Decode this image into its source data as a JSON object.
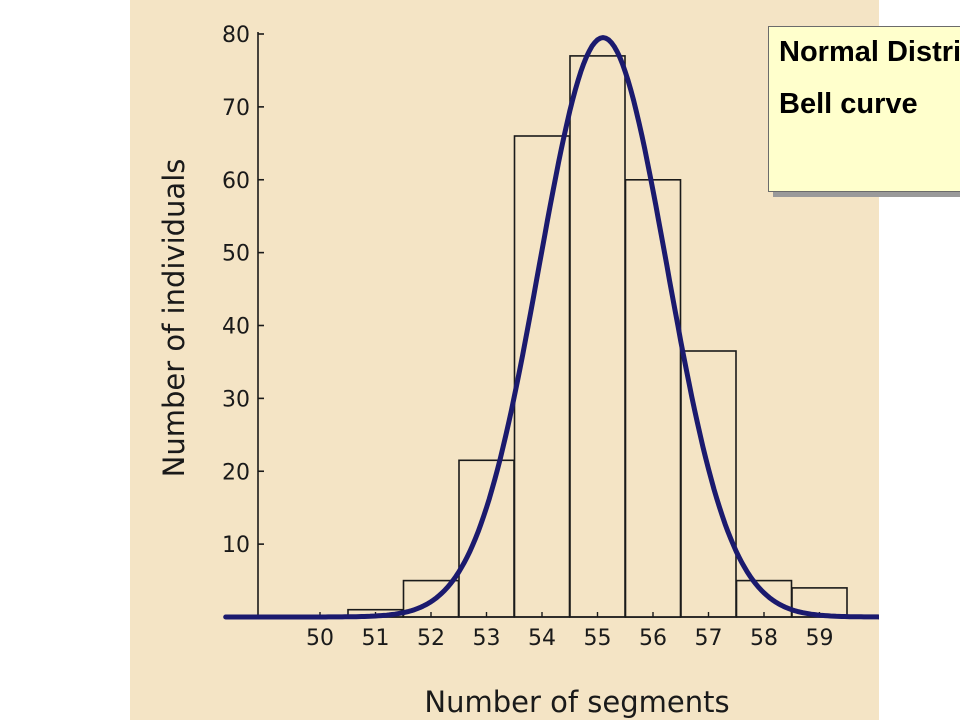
{
  "chart_data": {
    "type": "bar",
    "xlabel": "Number of segments",
    "ylabel": "Number of individuals",
    "categories": [
      "50",
      "51",
      "52",
      "53",
      "54",
      "55",
      "56",
      "57",
      "58",
      "59"
    ],
    "values": [
      0,
      1,
      5,
      21.5,
      66,
      77,
      60,
      36.5,
      5,
      4
    ],
    "yticks": [
      "10",
      "20",
      "30",
      "40",
      "50",
      "60",
      "70",
      "80"
    ],
    "ylim": [
      0,
      80
    ],
    "overlay_curve": {
      "type": "line",
      "description_on_chart": "",
      "color": "#1b1a6e"
    }
  },
  "note": {
    "line1": "Normal Distribution",
    "line2": "Bell curve"
  },
  "colors": {
    "panel_background": "#f4e4c5",
    "bar_fill": "#f4e4c5",
    "bar_stroke": "#1a1a1a",
    "curve": "#1b1a6e",
    "note_background": "#ffffcc"
  }
}
